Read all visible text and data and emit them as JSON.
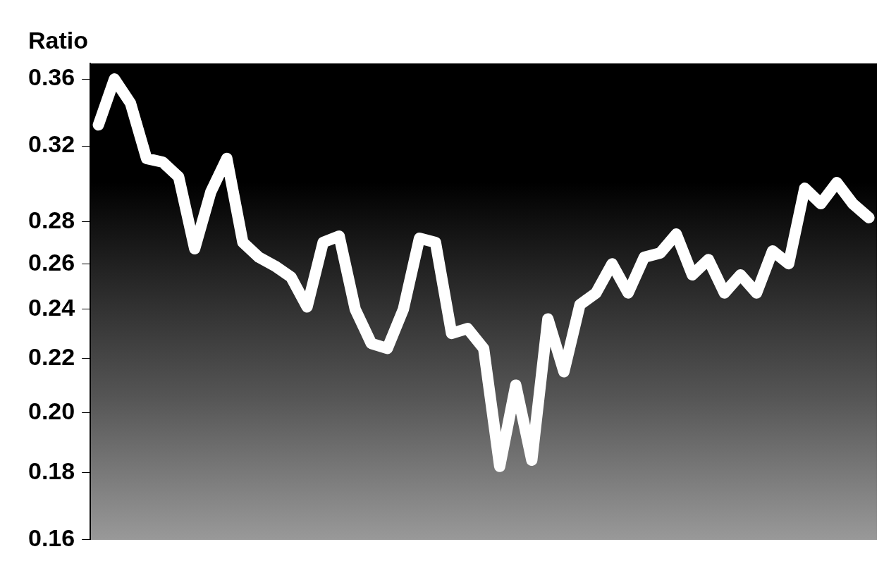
{
  "chart_data": {
    "type": "line",
    "ylabel": "Ratio",
    "categories": [
      null,
      null,
      null,
      null,
      null,
      null,
      null,
      null,
      null,
      null,
      null,
      null,
      null,
      null,
      null,
      null,
      null,
      null,
      null,
      null,
      null,
      null,
      null,
      null,
      null,
      null,
      null,
      null,
      null,
      null,
      null,
      null,
      null,
      null,
      null,
      null,
      null,
      null,
      null,
      null,
      null,
      null,
      null,
      null,
      null,
      null,
      null,
      null,
      null
    ],
    "series": [
      {
        "color": "#ffffff",
        "values": [
          0.332,
          0.36,
          0.345,
          0.313,
          0.311,
          0.303,
          0.267,
          0.295,
          0.313,
          0.27,
          0.263,
          0.259,
          0.254,
          0.241,
          0.27,
          0.273,
          0.24,
          0.226,
          0.224,
          0.24,
          0.272,
          0.27,
          0.23,
          0.232,
          0.224,
          0.182,
          0.21,
          0.184,
          0.236,
          0.215,
          0.242,
          0.247,
          0.26,
          0.247,
          0.263,
          0.265,
          0.274,
          0.255,
          0.262,
          0.247,
          0.255,
          0.247,
          0.266,
          0.26,
          0.297,
          0.289,
          0.3,
          0.289,
          0.282
        ]
      }
    ],
    "log": true,
    "ylim": [
      0.16,
      0.37
    ],
    "yticks": [
      0.16,
      0.18,
      {
        "value": 0.2,
        "label": "0.20"
      },
      0.22,
      0.24,
      0.26,
      0.28,
      0.32,
      0.36
    ],
    "tick_labels": "y",
    "grid": false,
    "legend": false,
    "marker": "none",
    "line_style": "solid"
  }
}
